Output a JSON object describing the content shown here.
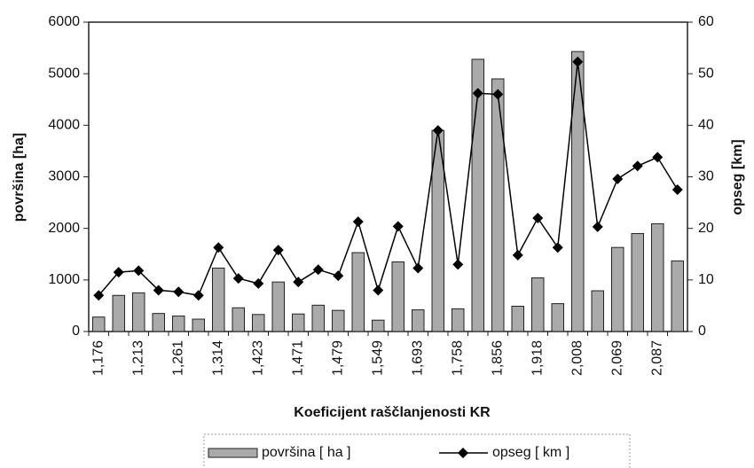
{
  "chart_data": {
    "type": "bar-line",
    "xlabel": "Koeficijent raščlanjenosti KR",
    "ylabel": "površina [ha]",
    "y2label": "opseg [km]",
    "categories": [
      "1,176",
      null,
      "1,213",
      null,
      "1,261",
      null,
      "1,314",
      null,
      "1,423",
      null,
      "1,471",
      null,
      "1,479",
      null,
      "1,549",
      null,
      "1,693",
      null,
      "1,758",
      null,
      "1,856",
      null,
      "1,918",
      null,
      "2,008",
      null,
      "2,069",
      null,
      "2,087",
      null
    ],
    "series": [
      {
        "name": "površina [ ha ]",
        "type": "bar",
        "axis": "y",
        "color": "#aaaaaa",
        "values": [
          280,
          700,
          750,
          350,
          300,
          240,
          1230,
          460,
          330,
          960,
          340,
          510,
          410,
          1530,
          220,
          1350,
          420,
          3900,
          440,
          5280,
          4900,
          490,
          1040,
          540,
          5430,
          790,
          1630,
          1900,
          2090,
          1370
        ]
      },
      {
        "name": "opseg [ km ]",
        "type": "line",
        "axis": "y2",
        "color": "#000000",
        "values": [
          7,
          11.5,
          11.8,
          8,
          7.7,
          7,
          16.3,
          10.3,
          9.3,
          15.8,
          9.6,
          12,
          10.8,
          21.3,
          8,
          20.4,
          12.3,
          39,
          13,
          46.2,
          46,
          14.8,
          22,
          16.3,
          52.3,
          20.3,
          29.6,
          32.1,
          33.8,
          27.5
        ]
      }
    ],
    "ylim": [
      0,
      6000
    ],
    "yticks": [
      0,
      1000,
      2000,
      3000,
      4000,
      5000,
      6000
    ],
    "y2lim": [
      0,
      60
    ],
    "y2ticks": [
      0,
      10,
      20,
      30,
      40,
      50,
      60
    ],
    "legend": "bottom"
  }
}
